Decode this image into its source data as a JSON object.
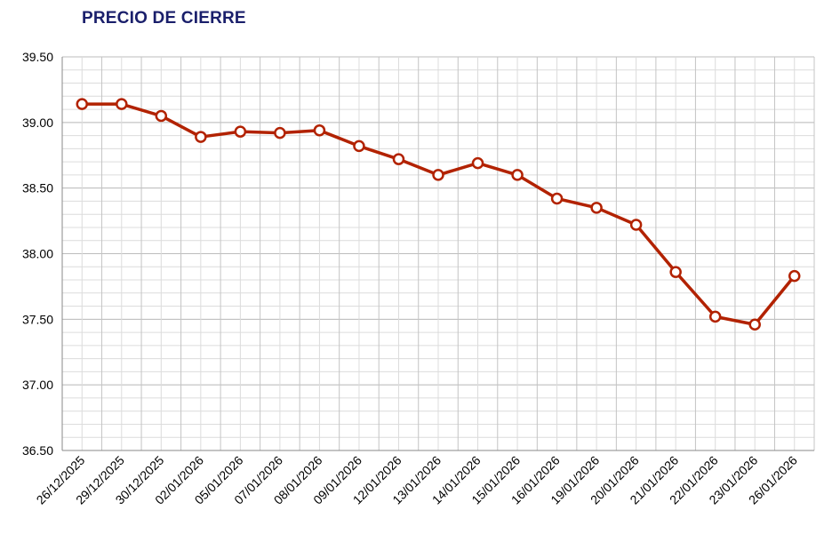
{
  "chart_data": {
    "type": "line",
    "title": "PRECIO DE CIERRE",
    "xlabel": "",
    "ylabel": "",
    "ylim": [
      36.5,
      39.5
    ],
    "y_ticks": [
      "39.50",
      "39.00",
      "38.50",
      "38.00",
      "37.50",
      "37.00",
      "36.50"
    ],
    "categories": [
      "26/12/2025",
      "29/12/2025",
      "30/12/2025",
      "02/01/2026",
      "05/01/2026",
      "07/01/2026",
      "08/01/2026",
      "09/01/2026",
      "12/01/2026",
      "13/01/2026",
      "14/01/2026",
      "15/01/2026",
      "16/01/2026",
      "19/01/2026",
      "20/01/2026",
      "21/01/2026",
      "22/01/2026",
      "23/01/2026",
      "26/01/2026"
    ],
    "series": [
      {
        "name": "",
        "values": [
          39.14,
          39.14,
          39.05,
          38.89,
          38.93,
          38.92,
          38.94,
          38.82,
          38.72,
          38.6,
          38.69,
          38.6,
          38.42,
          38.35,
          38.22,
          37.86,
          37.52,
          37.46,
          37.83
        ]
      }
    ],
    "grid": true,
    "legend": "none",
    "colors": {
      "line": "#b22200",
      "marker_fill": "#ffffff",
      "grid": "#c8c8c8",
      "title": "#1a1f6b"
    }
  }
}
